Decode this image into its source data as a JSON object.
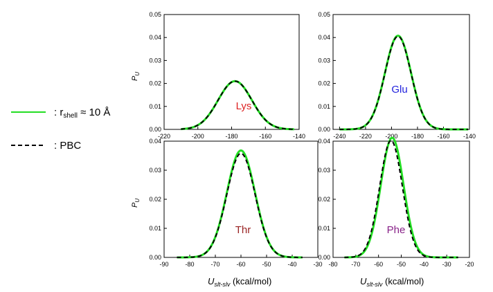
{
  "colors": {
    "shell": "#22dd22",
    "pbc": "#000000",
    "axis": "#000000"
  },
  "legend": {
    "shell": {
      "prefix": ": r",
      "sub": "shell",
      "suffix": " ≈ 10 Å"
    },
    "pbc": {
      "text": ": PBC"
    }
  },
  "axes": {
    "ylabel": "P",
    "ylabel_sub": "U",
    "xlabel_main": "U",
    "xlabel_sub": "slt-slv",
    "xlabel_unit": " (kcal/mol)"
  },
  "chart_data": [
    {
      "type": "line",
      "title": "Lys",
      "title_color": "#dd2222",
      "xlim": [
        -220,
        -140
      ],
      "ylim": [
        0,
        0.05
      ],
      "xticks": [
        -220,
        -200,
        -180,
        -160,
        -140
      ],
      "yticks": [
        0.0,
        0.01,
        0.02,
        0.03,
        0.04,
        0.05
      ],
      "x_range": [
        -210,
        -143
      ],
      "series": [
        {
          "name": "r_shell ≈ 10 Å",
          "color": "#22dd22",
          "style": "solid",
          "mean": -178,
          "sigma": 10.0,
          "peak": 0.021
        },
        {
          "name": "PBC",
          "color": "#000000",
          "style": "dashed",
          "mean": -178,
          "sigma": 10.0,
          "peak": 0.021
        }
      ]
    },
    {
      "type": "line",
      "title": "Glu",
      "title_color": "#2222dd",
      "xlim": [
        -245,
        -140
      ],
      "ylim": [
        0,
        0.05
      ],
      "xticks": [
        -240,
        -220,
        -200,
        -180,
        -160,
        -140
      ],
      "yticks": [
        0.0,
        0.01,
        0.02,
        0.03,
        0.04,
        0.05
      ],
      "x_range": [
        -240,
        -141
      ],
      "series": [
        {
          "name": "r_shell ≈ 10 Å",
          "color": "#22dd22",
          "style": "solid",
          "mean": -195,
          "sigma": 10.0,
          "peak": 0.0408
        },
        {
          "name": "PBC",
          "color": "#000000",
          "style": "dashed",
          "mean": -195,
          "sigma": 10.0,
          "peak": 0.0405
        }
      ]
    },
    {
      "type": "line",
      "title": "Thr",
      "title_color": "#992222",
      "xlim": [
        -90,
        -30
      ],
      "ylim": [
        0,
        0.04
      ],
      "xticks": [
        -90,
        -80,
        -70,
        -60,
        -50,
        -40,
        -30
      ],
      "yticks": [
        0.0,
        0.01,
        0.02,
        0.03,
        0.04
      ],
      "x_range": [
        -85,
        -36
      ],
      "series": [
        {
          "name": "r_shell ≈ 10 Å",
          "color": "#22dd22",
          "style": "solid",
          "mean": -60,
          "sigma": 5.5,
          "peak": 0.0368
        },
        {
          "name": "PBC",
          "color": "#000000",
          "style": "dashed",
          "mean": -60,
          "sigma": 5.5,
          "peak": 0.0358
        }
      ]
    },
    {
      "type": "line",
      "title": "Phe",
      "title_color": "#882288",
      "xlim": [
        -80,
        -20
      ],
      "ylim": [
        0,
        0.04
      ],
      "xticks": [
        -80,
        -70,
        -60,
        -50,
        -40,
        -30,
        -20
      ],
      "yticks": [
        0.0,
        0.01,
        0.02,
        0.03,
        0.04
      ],
      "x_range": [
        -75,
        -25
      ],
      "series": [
        {
          "name": "r_shell ≈ 10 Å",
          "color": "#22dd22",
          "style": "solid",
          "mean": -54,
          "sigma": 5.0,
          "peak": 0.0412
        },
        {
          "name": "PBC",
          "color": "#000000",
          "style": "dashed",
          "mean": -54.5,
          "sigma": 5.0,
          "peak": 0.0402
        }
      ]
    }
  ]
}
